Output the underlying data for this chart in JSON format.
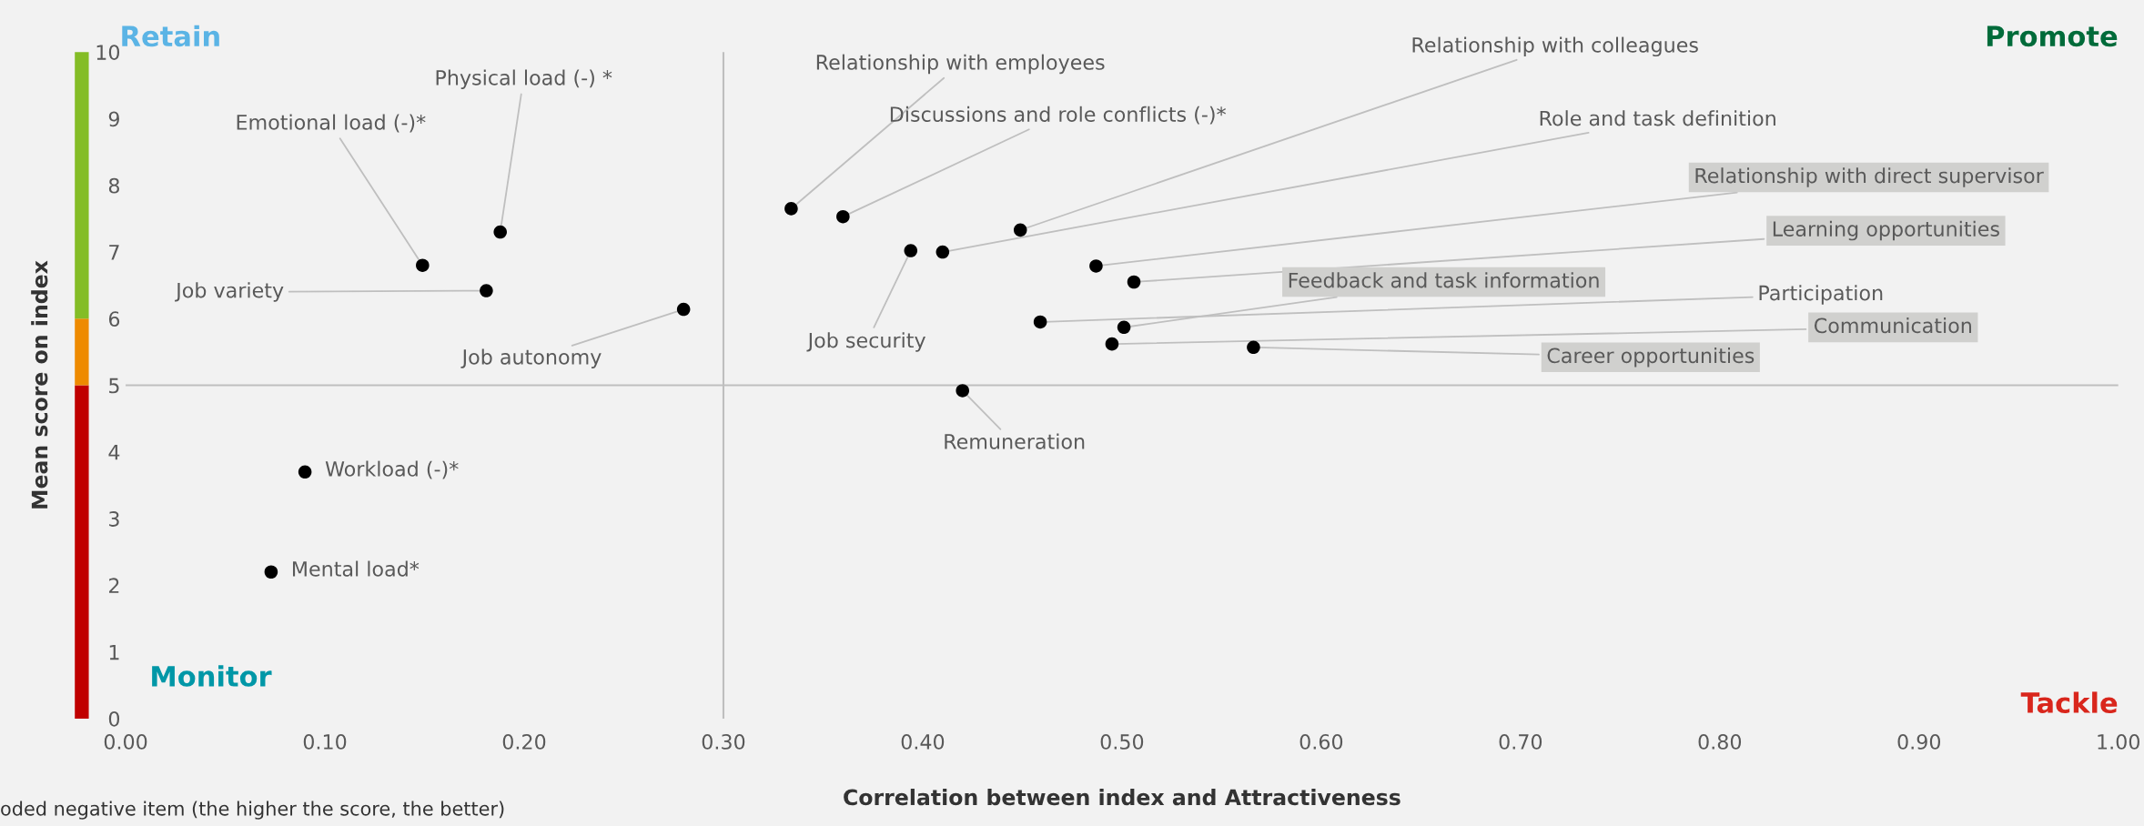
{
  "chart_data": {
    "type": "scatter",
    "xlabel": "Correlation between index and Attractiveness",
    "ylabel": "Mean score on index",
    "x": [
      0.188,
      0.149,
      0.181,
      0.28,
      0.334,
      0.36,
      0.394,
      0.41,
      0.449,
      0.487,
      0.506,
      0.501,
      0.459,
      0.495,
      0.566,
      0.42,
      0.09,
      0.073
    ],
    "series": [
      {
        "color": "#000000",
        "values": [
          7.3,
          6.8,
          6.42,
          6.14,
          7.65,
          7.53,
          7.02,
          7.0,
          7.33,
          6.79,
          6.55,
          5.87,
          5.95,
          5.62,
          5.57,
          4.92,
          3.7,
          2.2
        ]
      }
    ],
    "marker": "circle",
    "xlim": [
      0,
      1
    ],
    "ylim": [
      0,
      10
    ],
    "xticks": [
      {
        "value": 0,
        "label": "0.00"
      },
      {
        "value": 0.1,
        "label": "0.10"
      },
      {
        "value": 0.2,
        "label": "0.20"
      },
      {
        "value": 0.3,
        "label": "0.30"
      },
      {
        "value": 0.4,
        "label": "0.40"
      },
      {
        "value": 0.5,
        "label": "0.50"
      },
      {
        "value": 0.6,
        "label": "0.60"
      },
      {
        "value": 0.7,
        "label": "0.70"
      },
      {
        "value": 0.8,
        "label": "0.80"
      },
      {
        "value": 0.9,
        "label": "0.90"
      },
      {
        "value": 1,
        "label": "1.00"
      }
    ],
    "yticks": [
      0,
      1,
      2,
      3,
      4,
      5,
      6,
      7,
      8,
      9,
      10
    ],
    "ref_lines": [
      {
        "axis": "x",
        "value": 0.3,
        "color": "#bfbfbf"
      },
      {
        "axis": "y",
        "value": 5,
        "color": "#bfbfbf"
      }
    ],
    "annotations": [
      "Retain",
      "Promote",
      "Monitor",
      "Tackle",
      "oded negative item (the higher the score, the better)",
      {
        "text": "Physical load (-) *",
        "x": 0.188,
        "y": 7.3
      },
      {
        "text": "Emotional load (-)*",
        "x": 0.149,
        "y": 6.8
      },
      {
        "text": "Job variety",
        "x": 0.181,
        "y": 6.42
      },
      {
        "text": "Job autonomy",
        "x": 0.28,
        "y": 6.14
      },
      {
        "text": "Relationship with employees",
        "x": 0.334,
        "y": 7.65
      },
      {
        "text": "Discussions and role conflicts (-)*",
        "x": 0.36,
        "y": 7.53
      },
      {
        "text": "Job security",
        "x": 0.394,
        "y": 7.02
      },
      {
        "text": "Role and task definition",
        "x": 0.41,
        "y": 7.0
      },
      {
        "text": "Relationship with colleagues",
        "x": 0.449,
        "y": 7.33
      },
      {
        "text": "Relationship with direct supervisor",
        "x": 0.487,
        "y": 6.79
      },
      {
        "text": "Learning opportunities",
        "x": 0.506,
        "y": 6.55
      },
      {
        "text": "Feedback and task information",
        "x": 0.501,
        "y": 5.87
      },
      {
        "text": "Participation",
        "x": 0.459,
        "y": 5.95
      },
      {
        "text": "Communication",
        "x": 0.495,
        "y": 5.62
      },
      {
        "text": "Career opportunities",
        "x": 0.566,
        "y": 5.57
      },
      {
        "text": "Remuneration",
        "x": 0.42,
        "y": 4.92
      },
      {
        "text": "Workload (-)*",
        "x": 0.09,
        "y": 3.7
      },
      {
        "text": "Mental load*",
        "x": 0.073,
        "y": 2.2
      }
    ]
  }
}
